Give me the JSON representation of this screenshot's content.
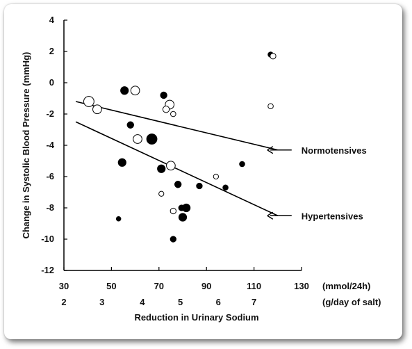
{
  "chart_data": {
    "type": "scatter",
    "title": "",
    "ylabel": "Change in Systolic Blood Pressure (mmHg)",
    "xlabel": "Reduction in Urinary Sodium",
    "x_unit_primary": "(mmol/24h)",
    "x_unit_secondary": "(g/day of salt)",
    "xlim": [
      30,
      130
    ],
    "ylim": [
      -12,
      4
    ],
    "y_ticks": [
      4,
      2,
      0,
      -2,
      -4,
      -6,
      -8,
      -10,
      -12
    ],
    "x_ticks_primary": [
      30,
      50,
      70,
      90,
      110,
      130
    ],
    "x_ticks_secondary": [
      {
        "label": "2",
        "value": 30
      },
      {
        "label": "3",
        "value": 46
      },
      {
        "label": "4",
        "value": 63
      },
      {
        "label": "5",
        "value": 79
      },
      {
        "label": "6",
        "value": 95
      },
      {
        "label": "7",
        "value": 110
      }
    ],
    "grid": false,
    "legend": "none",
    "series": [
      {
        "name": "Hypertensives",
        "marker": "filled",
        "color": "#000000",
        "points": [
          {
            "x": 55.5,
            "y": -0.5,
            "size": 2
          },
          {
            "x": 72,
            "y": -0.8,
            "size": 1.5
          },
          {
            "x": 58,
            "y": -2.7,
            "size": 1.5
          },
          {
            "x": 67,
            "y": -3.6,
            "size": 3
          },
          {
            "x": 54.5,
            "y": -5.1,
            "size": 2
          },
          {
            "x": 71,
            "y": -5.5,
            "size": 2
          },
          {
            "x": 78,
            "y": -6.5,
            "size": 1.5
          },
          {
            "x": 87,
            "y": -6.6,
            "size": 1.2
          },
          {
            "x": 98,
            "y": -6.7,
            "size": 1
          },
          {
            "x": 105,
            "y": -5.2,
            "size": 1
          },
          {
            "x": 79.5,
            "y": -8.0,
            "size": 1.2
          },
          {
            "x": 81.5,
            "y": -8.0,
            "size": 2
          },
          {
            "x": 80,
            "y": -8.6,
            "size": 2
          },
          {
            "x": 53,
            "y": -8.7,
            "size": 0.7
          },
          {
            "x": 76,
            "y": -10.0,
            "size": 1.2
          },
          {
            "x": 117,
            "y": 1.8,
            "size": 1
          }
        ]
      },
      {
        "name": "Normotensives",
        "marker": "open",
        "color": "#000000",
        "points": [
          {
            "x": 40.5,
            "y": -1.2,
            "size": 3
          },
          {
            "x": 44,
            "y": -1.7,
            "size": 2.4
          },
          {
            "x": 60,
            "y": -0.5,
            "size": 2.4
          },
          {
            "x": 74.5,
            "y": -1.4,
            "size": 2.4
          },
          {
            "x": 73,
            "y": -1.7,
            "size": 1.5
          },
          {
            "x": 76,
            "y": -2.0,
            "size": 1
          },
          {
            "x": 61,
            "y": -3.6,
            "size": 2.4
          },
          {
            "x": 75,
            "y": -5.3,
            "size": 2.4
          },
          {
            "x": 71,
            "y": -7.1,
            "size": 0.9
          },
          {
            "x": 76,
            "y": -8.2,
            "size": 1.2
          },
          {
            "x": 94,
            "y": -6.0,
            "size": 0.9
          },
          {
            "x": 117,
            "y": -1.5,
            "size": 1
          },
          {
            "x": 118,
            "y": 1.7,
            "size": 1.2
          }
        ]
      }
    ],
    "regression_lines": [
      {
        "name": "Normotensives",
        "x1": 35,
        "y1": -1.2,
        "x2": 120,
        "y2": -4.3
      },
      {
        "name": "Hypertensives",
        "x1": 35,
        "y1": -2.5,
        "x2": 120,
        "y2": -8.5
      }
    ],
    "annotations": [
      {
        "label": "Normotensives",
        "target_x": 120,
        "target_y": -4.3
      },
      {
        "label": "Hypertensives",
        "target_x": 120,
        "target_y": -8.5
      }
    ]
  }
}
